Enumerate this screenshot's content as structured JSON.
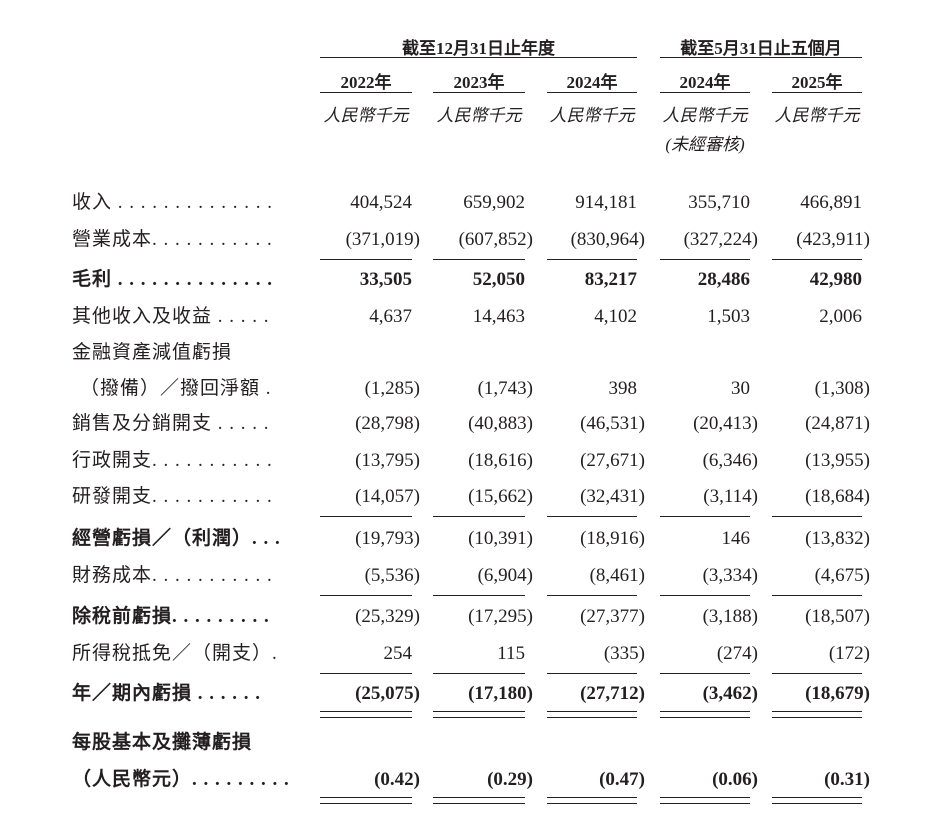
{
  "header": {
    "group_year": "截至12月31日止年度",
    "group_period": "截至5月31日止五個月",
    "columns": [
      {
        "year": "2022年",
        "unit": "人民幣千元",
        "note": ""
      },
      {
        "year": "2023年",
        "unit": "人民幣千元",
        "note": ""
      },
      {
        "year": "2024年",
        "unit": "人民幣千元",
        "note": ""
      },
      {
        "year": "2024年",
        "unit": "人民幣千元",
        "note": "(未經審核)"
      },
      {
        "year": "2025年",
        "unit": "人民幣千元",
        "note": ""
      }
    ]
  },
  "rows": [
    {
      "label": "收入 . . . . . . . . . . . . . .",
      "values": [
        "404,524",
        "659,902",
        "914,181",
        "355,710",
        "466,891"
      ],
      "bold": false,
      "rule": "none"
    },
    {
      "label": "營業成本. . . . . . . . . . .",
      "values": [
        "(371,019)",
        "(607,852)",
        "(830,964)",
        "(327,224)",
        "(423,911)"
      ],
      "bold": false,
      "rule": "single"
    },
    {
      "label": "毛利 . . . . . . . . . . . . . .",
      "values": [
        "33,505",
        "52,050",
        "83,217",
        "28,486",
        "42,980"
      ],
      "bold": true,
      "rule": "none"
    },
    {
      "label": "其他收入及收益 . . . . .",
      "values": [
        "4,637",
        "14,463",
        "4,102",
        "1,503",
        "2,006"
      ],
      "bold": false,
      "rule": "none"
    },
    {
      "label": "金融資產減值虧損",
      "values": [
        "",
        "",
        "",
        "",
        ""
      ],
      "bold": false,
      "rule": "none"
    },
    {
      "label": "（撥備）／撥回淨額 .",
      "values": [
        "(1,285)",
        "(1,743)",
        "398",
        "30",
        "(1,308)"
      ],
      "bold": false,
      "rule": "none",
      "indent": true
    },
    {
      "label": "銷售及分銷開支 . . . . .",
      "values": [
        "(28,798)",
        "(40,883)",
        "(46,531)",
        "(20,413)",
        "(24,871)"
      ],
      "bold": false,
      "rule": "none"
    },
    {
      "label": "行政開支. . . . . . . . . . .",
      "values": [
        "(13,795)",
        "(18,616)",
        "(27,671)",
        "(6,346)",
        "(13,955)"
      ],
      "bold": false,
      "rule": "none"
    },
    {
      "label": "研發開支. . . . . . . . . . .",
      "values": [
        "(14,057)",
        "(15,662)",
        "(32,431)",
        "(3,114)",
        "(18,684)"
      ],
      "bold": false,
      "rule": "single"
    },
    {
      "label": "經營虧損／（利潤）. . .",
      "values": [
        "(19,793)",
        "(10,391)",
        "(18,916)",
        "146",
        "(13,832)"
      ],
      "bold": false,
      "labelBold": true,
      "rule": "none"
    },
    {
      "label": "財務成本. . . . . . . . . . .",
      "values": [
        "(5,536)",
        "(6,904)",
        "(8,461)",
        "(3,334)",
        "(4,675)"
      ],
      "bold": false,
      "rule": "single"
    },
    {
      "label": "除稅前虧損. . . . . . . . .",
      "values": [
        "(25,329)",
        "(17,295)",
        "(27,377)",
        "(3,188)",
        "(18,507)"
      ],
      "bold": false,
      "labelBold": true,
      "rule": "none"
    },
    {
      "label": "所得稅抵免／（開支）.",
      "values": [
        "254",
        "115",
        "(335)",
        "(274)",
        "(172)"
      ],
      "bold": false,
      "rule": "single"
    },
    {
      "label": "年／期內虧損 . . . . . .",
      "values": [
        "(25,075)",
        "(17,180)",
        "(27,712)",
        "(3,462)",
        "(18,679)"
      ],
      "bold": true,
      "rule": "double"
    },
    {
      "label": "每股基本及攤薄虧損",
      "values": [
        "",
        "",
        "",
        "",
        ""
      ],
      "bold": true,
      "rule": "none"
    },
    {
      "label": "（人民幣元）. . . . . . . . .",
      "values": [
        "(0.42)",
        "(0.29)",
        "(0.47)",
        "(0.06)",
        "(0.31)"
      ],
      "bold": true,
      "rule": "double"
    }
  ]
}
